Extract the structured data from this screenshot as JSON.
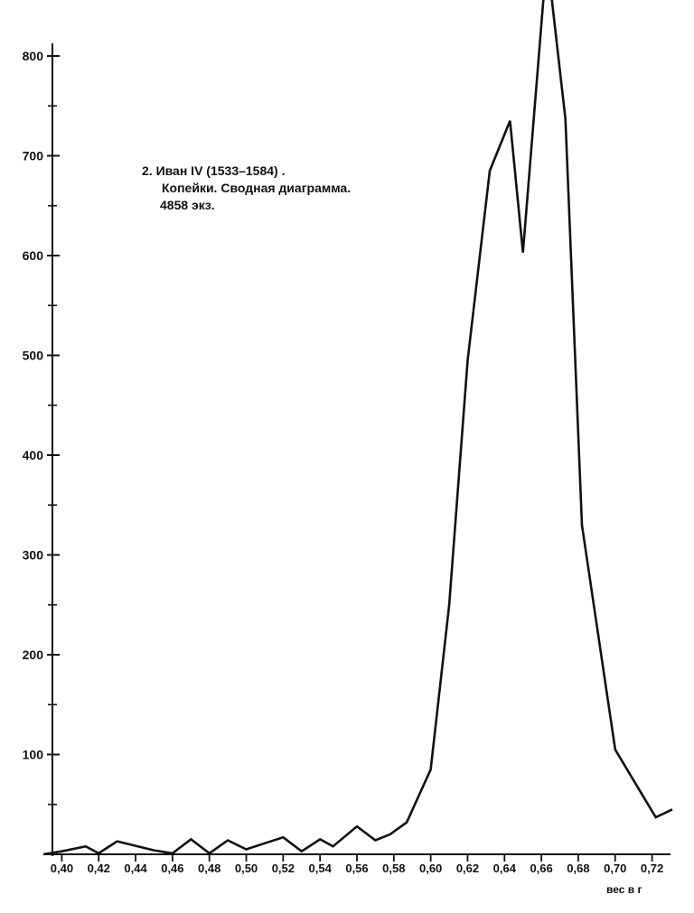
{
  "chart_data": {
    "type": "line",
    "title_lines": [
      "2. Иван IV (1533–1584) .",
      "Копейки. Сводная диаграмма.",
      "4858 экз."
    ],
    "xlabel": "вес в г",
    "ylabel": "",
    "xlim": [
      0.39,
      0.73
    ],
    "ylim": [
      0,
      800
    ],
    "x_ticks": [
      0.4,
      0.42,
      0.44,
      0.46,
      0.48,
      0.5,
      0.52,
      0.54,
      0.56,
      0.58,
      0.6,
      0.62,
      0.64,
      0.66,
      0.68,
      0.7,
      0.72
    ],
    "x_tick_labels": [
      "0,40",
      "0,42",
      "0,44",
      "0,46",
      "0,48",
      "0,50",
      "0,52",
      "0,54",
      "0,56",
      "0,58",
      "0,60",
      "0,62",
      "0,64",
      "0,66",
      "0,68",
      "0,70",
      "0,72"
    ],
    "y_ticks": [
      100,
      200,
      300,
      400,
      500,
      600,
      700,
      800
    ],
    "y_tick_labels": [
      "100",
      "200",
      "300",
      "400",
      "500",
      "600",
      "700",
      "800"
    ],
    "y_minor_ticks": [
      50,
      150,
      250,
      350,
      450,
      550,
      650,
      750
    ],
    "grid": false,
    "series": [
      {
        "x": [
          0.39,
          0.4,
          0.413,
          0.42,
          0.43,
          0.45,
          0.46,
          0.47,
          0.48,
          0.49,
          0.5,
          0.51,
          0.52,
          0.53,
          0.54,
          0.547,
          0.56,
          0.57,
          0.578,
          0.587,
          0.6,
          0.61,
          0.62,
          0.632,
          0.643,
          0.65,
          0.663,
          0.673,
          0.682,
          0.7,
          0.722,
          0.731
        ],
        "values": [
          0,
          3,
          8,
          1,
          13,
          4,
          1,
          15,
          1,
          14,
          5,
          11,
          17,
          3,
          15,
          8,
          28,
          14,
          20,
          32,
          85,
          250,
          495,
          685,
          735,
          603,
          900,
          737,
          330,
          105,
          37,
          45
        ],
        "color": "#111111"
      }
    ]
  }
}
